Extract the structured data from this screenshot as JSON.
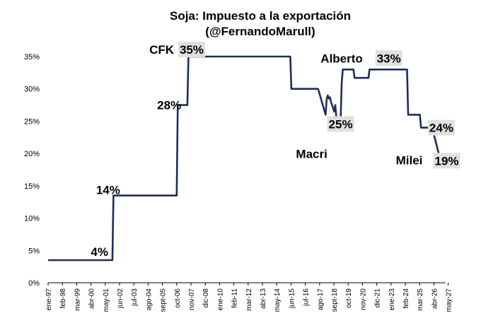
{
  "title": "Soja: Impuesto a la exportación",
  "subtitle": "(@FernandoMarull)",
  "chart_data": {
    "type": "line",
    "title": "Soja: Impuesto a la exportación",
    "subtitle": "(@FernandoMarull)",
    "xlabel": "",
    "ylabel": "",
    "ylim": [
      0,
      35
    ],
    "xlim": [
      "1997-01",
      "2027-12"
    ],
    "grid": false,
    "legend": "none",
    "line_color": "#1f2d5a",
    "ytick_labels": [
      "0%",
      "5%",
      "10%",
      "15%",
      "20%",
      "25%",
      "30%",
      "35%"
    ],
    "ytick_values": [
      0,
      5,
      10,
      15,
      20,
      25,
      30,
      35
    ],
    "xtick_labels": [
      "ene-97",
      "feb-98",
      "mar-99",
      "abr-00",
      "may-01",
      "jun-02",
      "jul-03",
      "ago-04",
      "sept-05",
      "oct-06",
      "nov-07",
      "dic-08",
      "ene-10",
      "feb-11",
      "mar-12",
      "abr-13",
      "may-14",
      "jun-15",
      "jul-16",
      "ago-17",
      "sept-18",
      "oct-19",
      "nov-20",
      "dic-21",
      "ene-23",
      "feb-24",
      "mar-25",
      "abr-26",
      "may-27"
    ],
    "series": [
      {
        "x": [
          "1997-01",
          "2002-01",
          "2002-02",
          "2007-01",
          "2007-02",
          "2007-11",
          "2007-12",
          "2015-11",
          "2015-12",
          "2017-12",
          "2018-01",
          "2018-08",
          "2018-09",
          "2018-10",
          "2018-11",
          "2018-12",
          "2019-01",
          "2019-04",
          "2019-05",
          "2019-06",
          "2019-07",
          "2019-10",
          "2019-11",
          "2019-12",
          "2020-01",
          "2020-10",
          "2020-11",
          "2021-12",
          "2022-01",
          "2024-12",
          "2025-01",
          "2025-12",
          "2026-01",
          "2026-12",
          "2027-01",
          "2027-04",
          "2027-07"
        ],
        "values": [
          3.5,
          3.5,
          13.5,
          13.5,
          27.5,
          27.5,
          35,
          35,
          30,
          30,
          30,
          26,
          28.5,
          29,
          28.5,
          28.7,
          28,
          26.5,
          27.5,
          25.5,
          25,
          25,
          31,
          33,
          33,
          33,
          31.7,
          31.7,
          33,
          33,
          26,
          26,
          24,
          24,
          23,
          21,
          19
        ]
      }
    ],
    "annotations": [
      {
        "text": "4%",
        "x": "2001-01",
        "y": 3.5,
        "boxed": false
      },
      {
        "text": "14%",
        "x": "2001-09",
        "y": 13.5,
        "boxed": false
      },
      {
        "text": "28%",
        "x": "2006-06",
        "y": 27.5,
        "boxed": false
      },
      {
        "text": "CFK",
        "x": "2005-11",
        "y": 35,
        "boxed": false
      },
      {
        "text": "35%",
        "x": "2008-03",
        "y": 35,
        "boxed": true
      },
      {
        "text": "25%",
        "x": "2019-10",
        "y": 25,
        "boxed": true
      },
      {
        "text": "Macri",
        "x": "2017-07",
        "y": 20,
        "boxed": false
      },
      {
        "text": "Alberto",
        "x": "2019-11",
        "y": 33,
        "boxed": false
      },
      {
        "text": "33%",
        "x": "2023-07",
        "y": 33,
        "boxed": true
      },
      {
        "text": "24%",
        "x": "2027-08",
        "y": 24,
        "boxed": true
      },
      {
        "text": "Milei",
        "x": "2025-02",
        "y": 19,
        "boxed": false
      },
      {
        "text": "19%",
        "x": "2028-01",
        "y": 19,
        "boxed": true
      }
    ]
  }
}
